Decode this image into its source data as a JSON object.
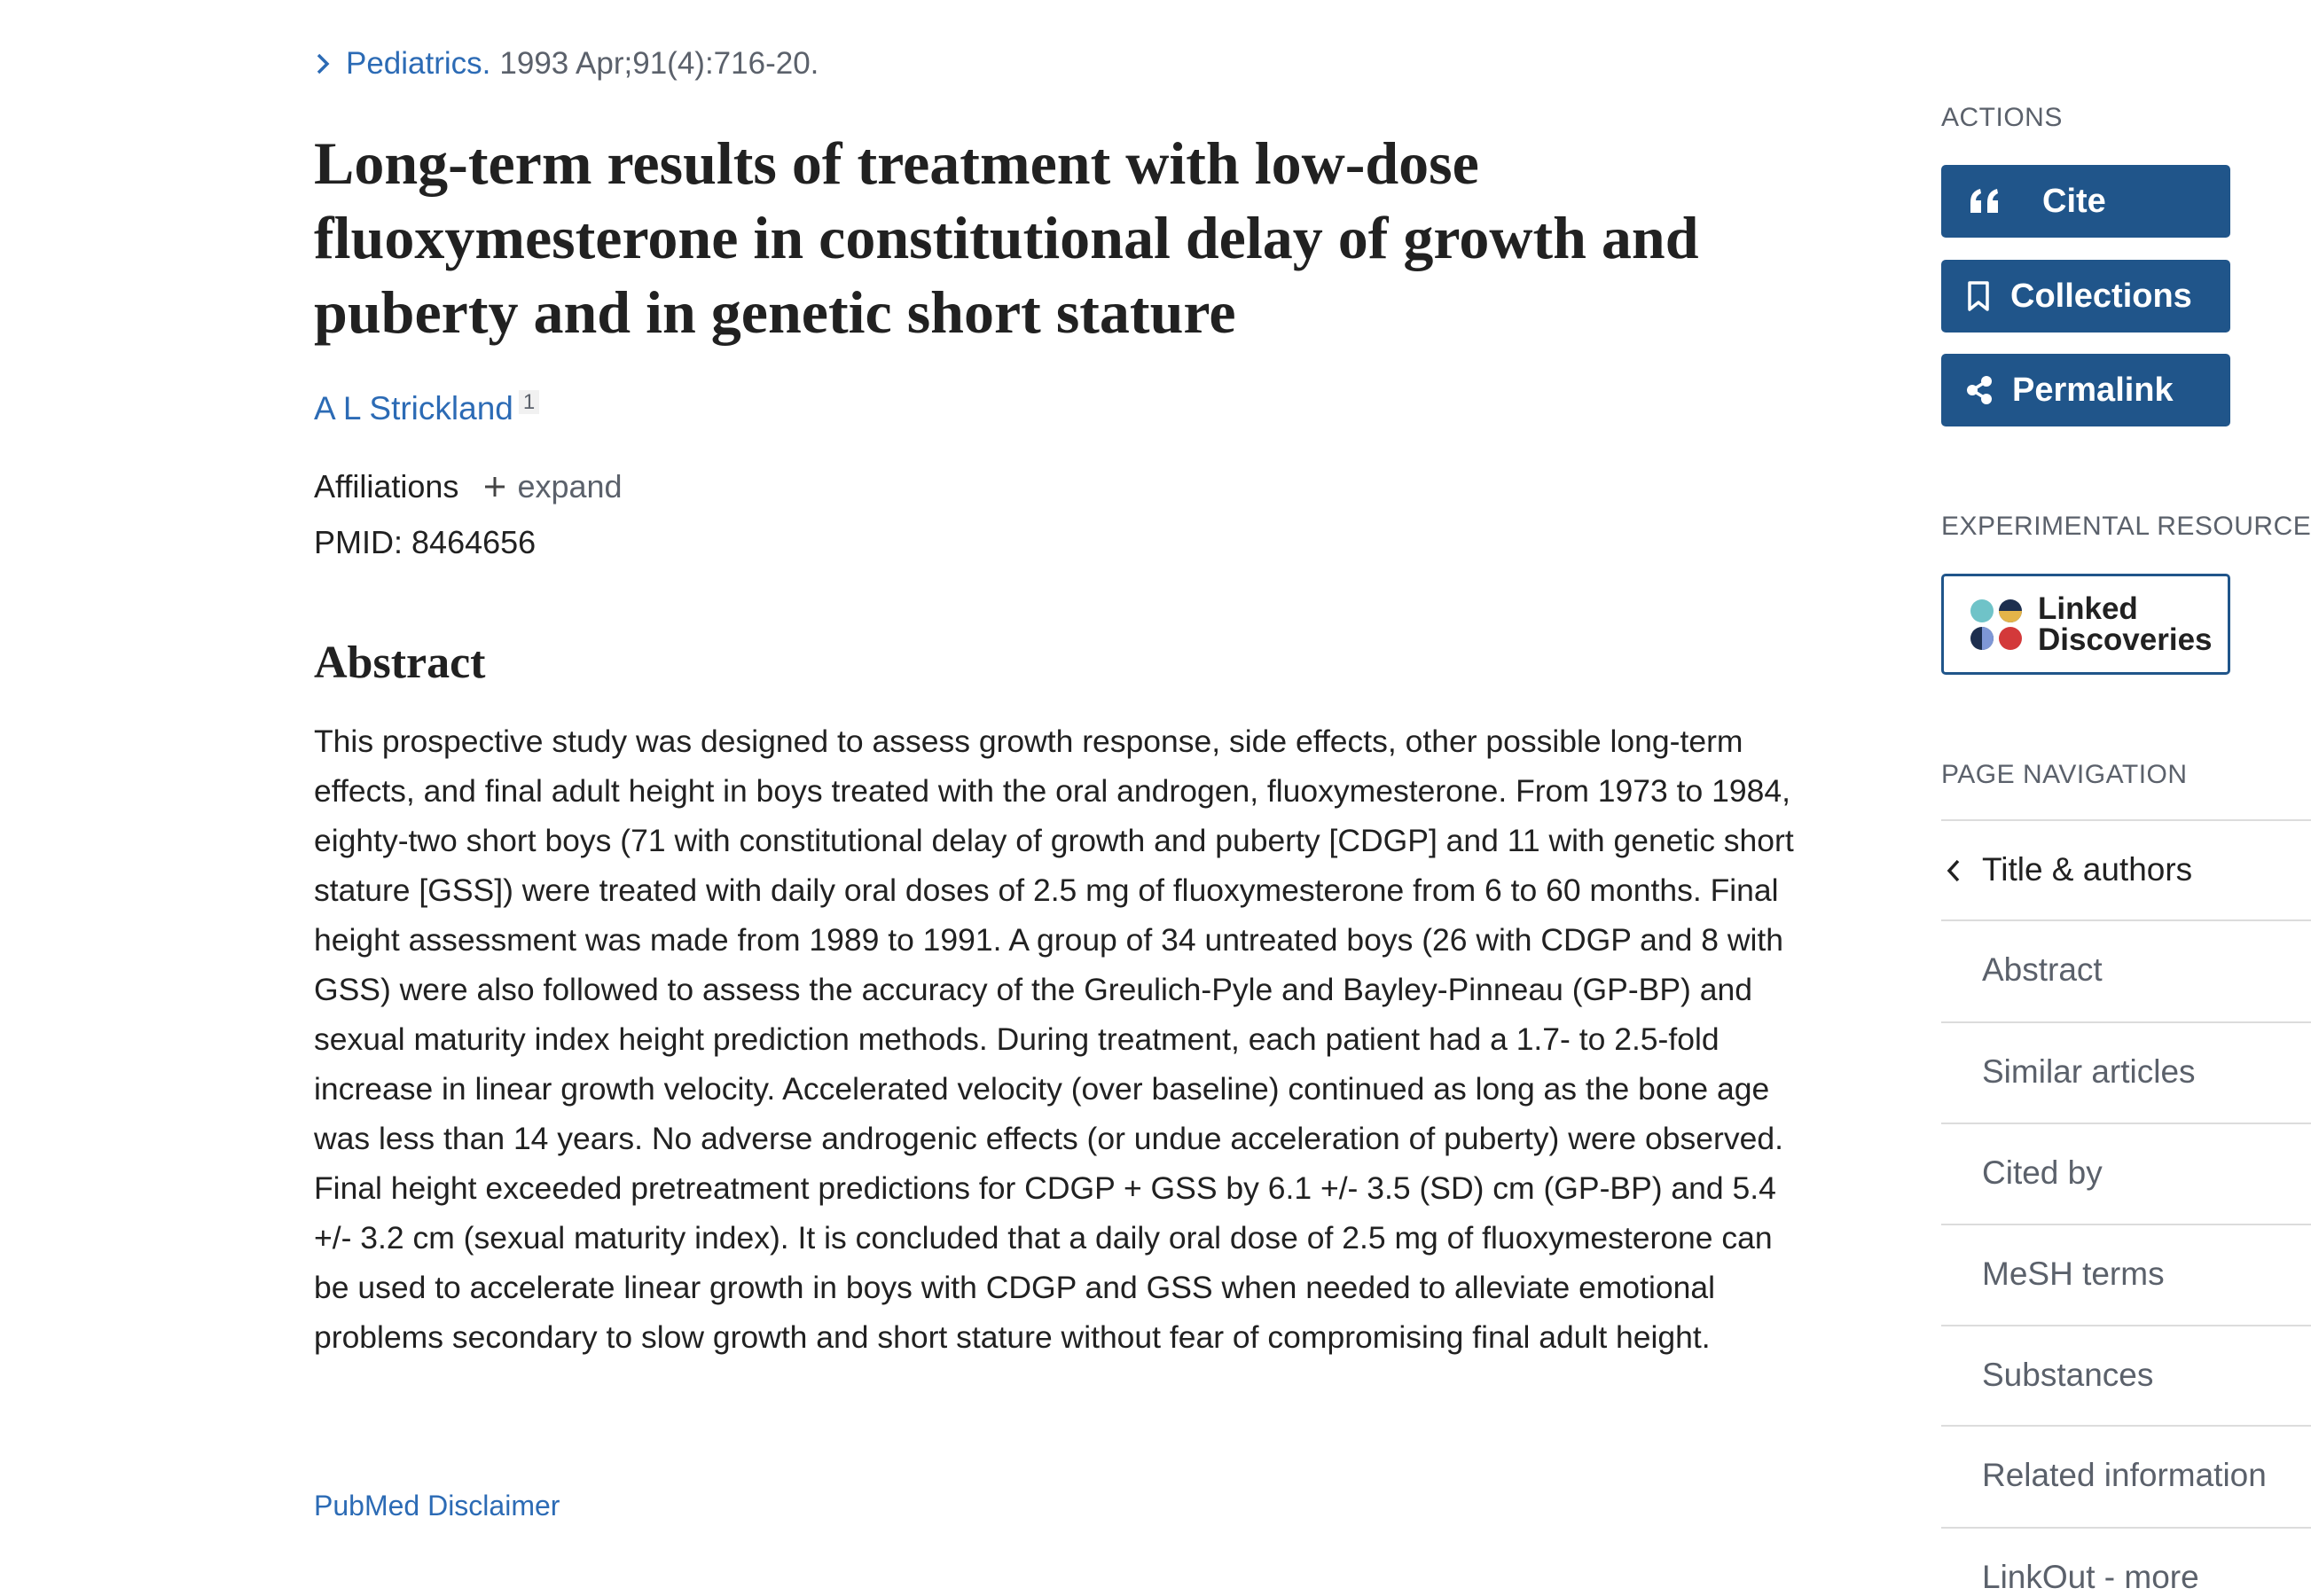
{
  "journal": {
    "name": "Pediatrics.",
    "citation": "1993 Apr;91(4):716-20."
  },
  "title": "Long-term results of treatment with low-dose fluoxymesterone in constitutional delay of growth and puberty and in genetic short stature",
  "authors": [
    {
      "name": "A L Strickland",
      "affiliation_ref": "1"
    }
  ],
  "affiliations": {
    "label": "Affiliations",
    "toggle": "expand"
  },
  "pmid": {
    "label": "PMID:",
    "value": "8464656"
  },
  "abstract": {
    "heading": "Abstract",
    "text": "This prospective study was designed to assess growth response, side effects, other possible long-term effects, and final adult height in boys treated with the oral androgen, fluoxymesterone. From 1973 to 1984, eighty-two short boys (71 with constitutional delay of growth and puberty [CDGP] and 11 with genetic short stature [GSS]) were treated with daily oral doses of 2.5 mg of fluoxymesterone from 6 to 60 months. Final height assessment was made from 1989 to 1991. A group of 34 untreated boys (26 with CDGP and 8 with GSS) were also followed to assess the accuracy of the Greulich-Pyle and Bayley-Pinneau (GP-BP) and sexual maturity index height prediction methods. During treatment, each patient had a 1.7- to 2.5-fold increase in linear growth velocity. Accelerated velocity (over baseline) continued as long as the bone age was less than 14 years. No adverse androgenic effects (or undue acceleration of puberty) were observed. Final height exceeded pretreatment predictions for CDGP + GSS by 6.1 +/- 3.5 (SD) cm (GP-BP) and 5.4 +/- 3.2 cm (sexual maturity index). It is concluded that a daily oral dose of 2.5 mg of fluoxymesterone can be used to accelerate linear growth in boys with CDGP and GSS when needed to alleviate emotional problems secondary to slow growth and short stature without fear of compromising final adult height."
  },
  "disclaimer": "PubMed Disclaimer",
  "sidebar": {
    "actions_heading": "ACTIONS",
    "actions": [
      "Cite",
      "Collections",
      "Permalink"
    ],
    "experimental_heading": "EXPERIMENTAL RESOURCE",
    "linked_discoveries": "Linked Discoveries",
    "navigation_heading": "PAGE NAVIGATION",
    "navigation": [
      "Title & authors",
      "Abstract",
      "Similar articles",
      "Cited by",
      "MeSH terms",
      "Substances",
      "Related information",
      "LinkOut - more"
    ]
  }
}
